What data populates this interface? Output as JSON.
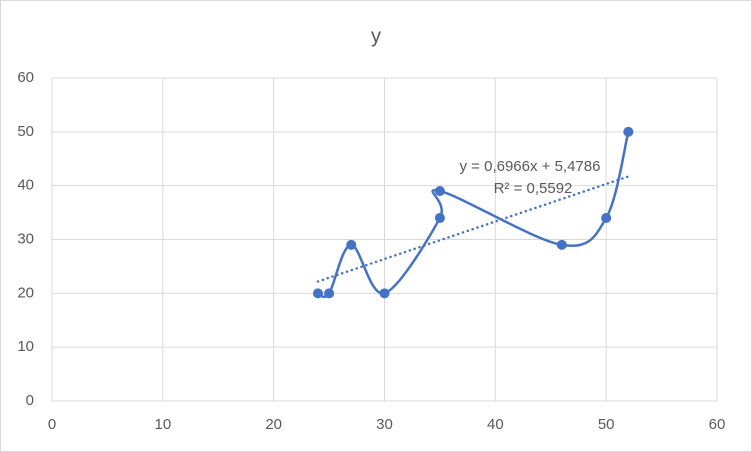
{
  "chart_data": {
    "type": "scatter",
    "title": "y",
    "series": [
      {
        "name": "y",
        "color": "#4472c4",
        "x": [
          24,
          25,
          27,
          30,
          35,
          35,
          46,
          50,
          52
        ],
        "values": [
          20,
          20,
          29,
          20,
          34,
          39,
          29,
          34,
          50
        ]
      }
    ],
    "smooth": true,
    "trendline": {
      "slope": 0.6966,
      "intercept": 5.4786,
      "equation": "y = 0,6966x + 5,4786",
      "r2_label": "R² = 0,5592"
    },
    "xlim": [
      0,
      60
    ],
    "xticks": [
      0,
      10,
      20,
      30,
      40,
      50,
      60
    ],
    "ylim": [
      0,
      60
    ],
    "yticks": [
      0,
      10,
      20,
      30,
      40,
      50,
      60
    ],
    "grid": true
  }
}
